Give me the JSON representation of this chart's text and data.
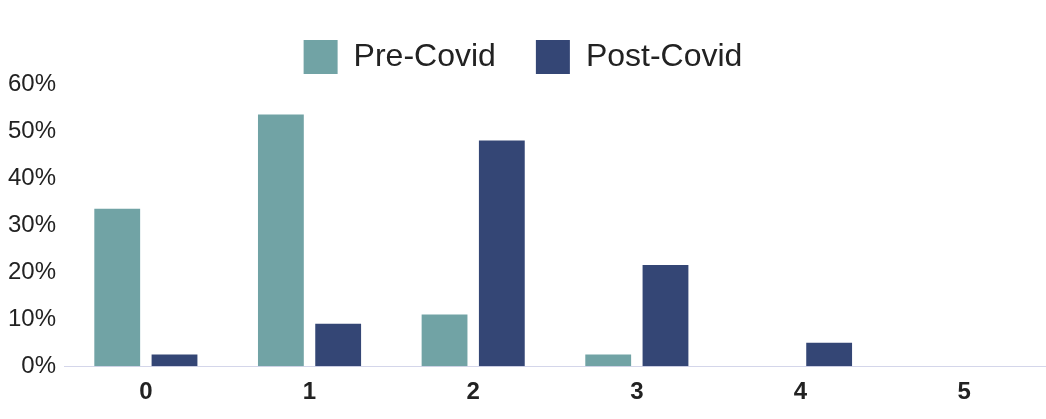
{
  "chart_data": {
    "type": "bar",
    "categories": [
      "0",
      "1",
      "2",
      "3",
      "4",
      "5"
    ],
    "series": [
      {
        "name": "Pre-Covid",
        "color": "#71a3a5",
        "values": [
          33.5,
          53.5,
          11,
          2.5,
          0,
          0
        ]
      },
      {
        "name": "Post-Covid",
        "color": "#344675",
        "values": [
          2.5,
          9,
          48,
          21.5,
          5,
          0
        ]
      }
    ],
    "ylim": [
      0,
      60
    ],
    "yticks": [
      {
        "value": 0,
        "label": "0%"
      },
      {
        "value": 10,
        "label": "10%"
      },
      {
        "value": 20,
        "label": "20%"
      },
      {
        "value": 30,
        "label": "30%"
      },
      {
        "value": 40,
        "label": "40%"
      },
      {
        "value": 50,
        "label": "50%"
      },
      {
        "value": 60,
        "label": "60%"
      }
    ],
    "grid": false,
    "legend": "top"
  }
}
